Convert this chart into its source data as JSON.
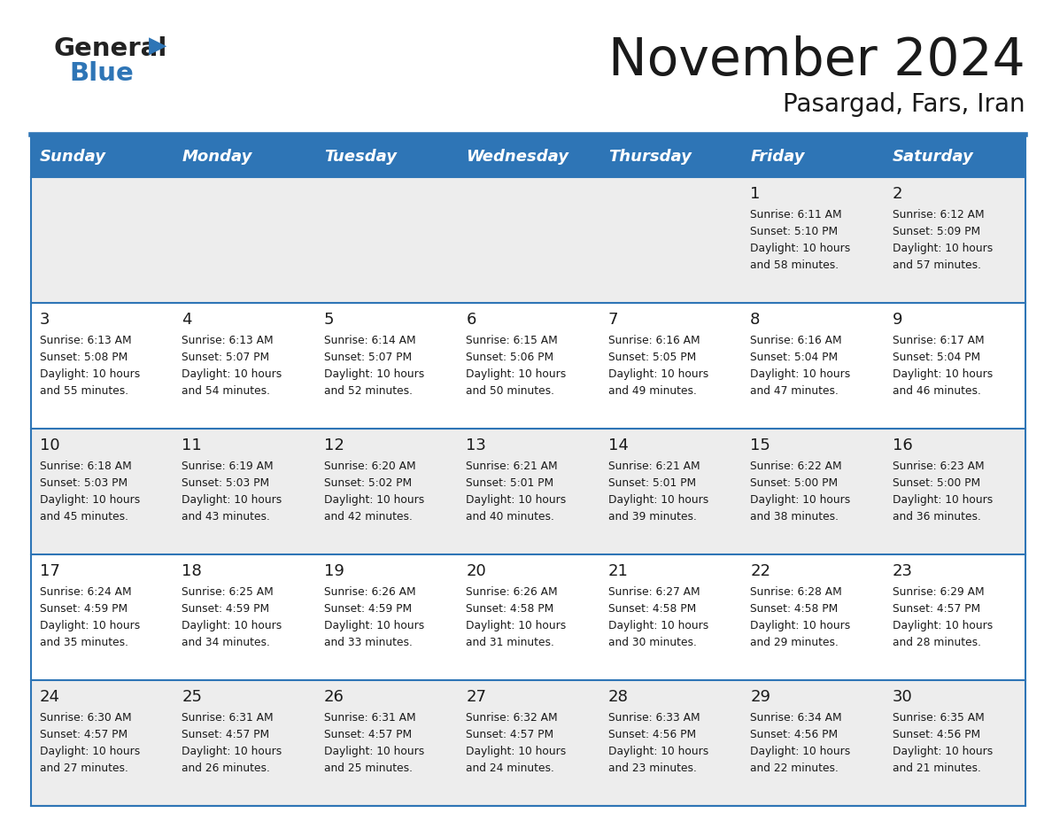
{
  "title": "November 2024",
  "subtitle": "Pasargad, Fars, Iran",
  "header_color": "#2E75B6",
  "header_text_color": "#FFFFFF",
  "day_names": [
    "Sunday",
    "Monday",
    "Tuesday",
    "Wednesday",
    "Thursday",
    "Friday",
    "Saturday"
  ],
  "background_color": "#FFFFFF",
  "cell_bg_light": "#EDEDED",
  "cell_bg_white": "#FFFFFF",
  "grid_line_color": "#2E75B6",
  "text_color": "#1a1a1a",
  "days": [
    {
      "day": 1,
      "col": 5,
      "row": 0,
      "sunrise": "6:11 AM",
      "sunset": "5:10 PM",
      "daylight_min": "58"
    },
    {
      "day": 2,
      "col": 6,
      "row": 0,
      "sunrise": "6:12 AM",
      "sunset": "5:09 PM",
      "daylight_min": "57"
    },
    {
      "day": 3,
      "col": 0,
      "row": 1,
      "sunrise": "6:13 AM",
      "sunset": "5:08 PM",
      "daylight_min": "55"
    },
    {
      "day": 4,
      "col": 1,
      "row": 1,
      "sunrise": "6:13 AM",
      "sunset": "5:07 PM",
      "daylight_min": "54"
    },
    {
      "day": 5,
      "col": 2,
      "row": 1,
      "sunrise": "6:14 AM",
      "sunset": "5:07 PM",
      "daylight_min": "52"
    },
    {
      "day": 6,
      "col": 3,
      "row": 1,
      "sunrise": "6:15 AM",
      "sunset": "5:06 PM",
      "daylight_min": "50"
    },
    {
      "day": 7,
      "col": 4,
      "row": 1,
      "sunrise": "6:16 AM",
      "sunset": "5:05 PM",
      "daylight_min": "49"
    },
    {
      "day": 8,
      "col": 5,
      "row": 1,
      "sunrise": "6:16 AM",
      "sunset": "5:04 PM",
      "daylight_min": "47"
    },
    {
      "day": 9,
      "col": 6,
      "row": 1,
      "sunrise": "6:17 AM",
      "sunset": "5:04 PM",
      "daylight_min": "46"
    },
    {
      "day": 10,
      "col": 0,
      "row": 2,
      "sunrise": "6:18 AM",
      "sunset": "5:03 PM",
      "daylight_min": "45"
    },
    {
      "day": 11,
      "col": 1,
      "row": 2,
      "sunrise": "6:19 AM",
      "sunset": "5:03 PM",
      "daylight_min": "43"
    },
    {
      "day": 12,
      "col": 2,
      "row": 2,
      "sunrise": "6:20 AM",
      "sunset": "5:02 PM",
      "daylight_min": "42"
    },
    {
      "day": 13,
      "col": 3,
      "row": 2,
      "sunrise": "6:21 AM",
      "sunset": "5:01 PM",
      "daylight_min": "40"
    },
    {
      "day": 14,
      "col": 4,
      "row": 2,
      "sunrise": "6:21 AM",
      "sunset": "5:01 PM",
      "daylight_min": "39"
    },
    {
      "day": 15,
      "col": 5,
      "row": 2,
      "sunrise": "6:22 AM",
      "sunset": "5:00 PM",
      "daylight_min": "38"
    },
    {
      "day": 16,
      "col": 6,
      "row": 2,
      "sunrise": "6:23 AM",
      "sunset": "5:00 PM",
      "daylight_min": "36"
    },
    {
      "day": 17,
      "col": 0,
      "row": 3,
      "sunrise": "6:24 AM",
      "sunset": "4:59 PM",
      "daylight_min": "35"
    },
    {
      "day": 18,
      "col": 1,
      "row": 3,
      "sunrise": "6:25 AM",
      "sunset": "4:59 PM",
      "daylight_min": "34"
    },
    {
      "day": 19,
      "col": 2,
      "row": 3,
      "sunrise": "6:26 AM",
      "sunset": "4:59 PM",
      "daylight_min": "33"
    },
    {
      "day": 20,
      "col": 3,
      "row": 3,
      "sunrise": "6:26 AM",
      "sunset": "4:58 PM",
      "daylight_min": "31"
    },
    {
      "day": 21,
      "col": 4,
      "row": 3,
      "sunrise": "6:27 AM",
      "sunset": "4:58 PM",
      "daylight_min": "30"
    },
    {
      "day": 22,
      "col": 5,
      "row": 3,
      "sunrise": "6:28 AM",
      "sunset": "4:58 PM",
      "daylight_min": "29"
    },
    {
      "day": 23,
      "col": 6,
      "row": 3,
      "sunrise": "6:29 AM",
      "sunset": "4:57 PM",
      "daylight_min": "28"
    },
    {
      "day": 24,
      "col": 0,
      "row": 4,
      "sunrise": "6:30 AM",
      "sunset": "4:57 PM",
      "daylight_min": "27"
    },
    {
      "day": 25,
      "col": 1,
      "row": 4,
      "sunrise": "6:31 AM",
      "sunset": "4:57 PM",
      "daylight_min": "26"
    },
    {
      "day": 26,
      "col": 2,
      "row": 4,
      "sunrise": "6:31 AM",
      "sunset": "4:57 PM",
      "daylight_min": "25"
    },
    {
      "day": 27,
      "col": 3,
      "row": 4,
      "sunrise": "6:32 AM",
      "sunset": "4:57 PM",
      "daylight_min": "24"
    },
    {
      "day": 28,
      "col": 4,
      "row": 4,
      "sunrise": "6:33 AM",
      "sunset": "4:56 PM",
      "daylight_min": "23"
    },
    {
      "day": 29,
      "col": 5,
      "row": 4,
      "sunrise": "6:34 AM",
      "sunset": "4:56 PM",
      "daylight_min": "22"
    },
    {
      "day": 30,
      "col": 6,
      "row": 4,
      "sunrise": "6:35 AM",
      "sunset": "4:56 PM",
      "daylight_min": "21"
    }
  ]
}
